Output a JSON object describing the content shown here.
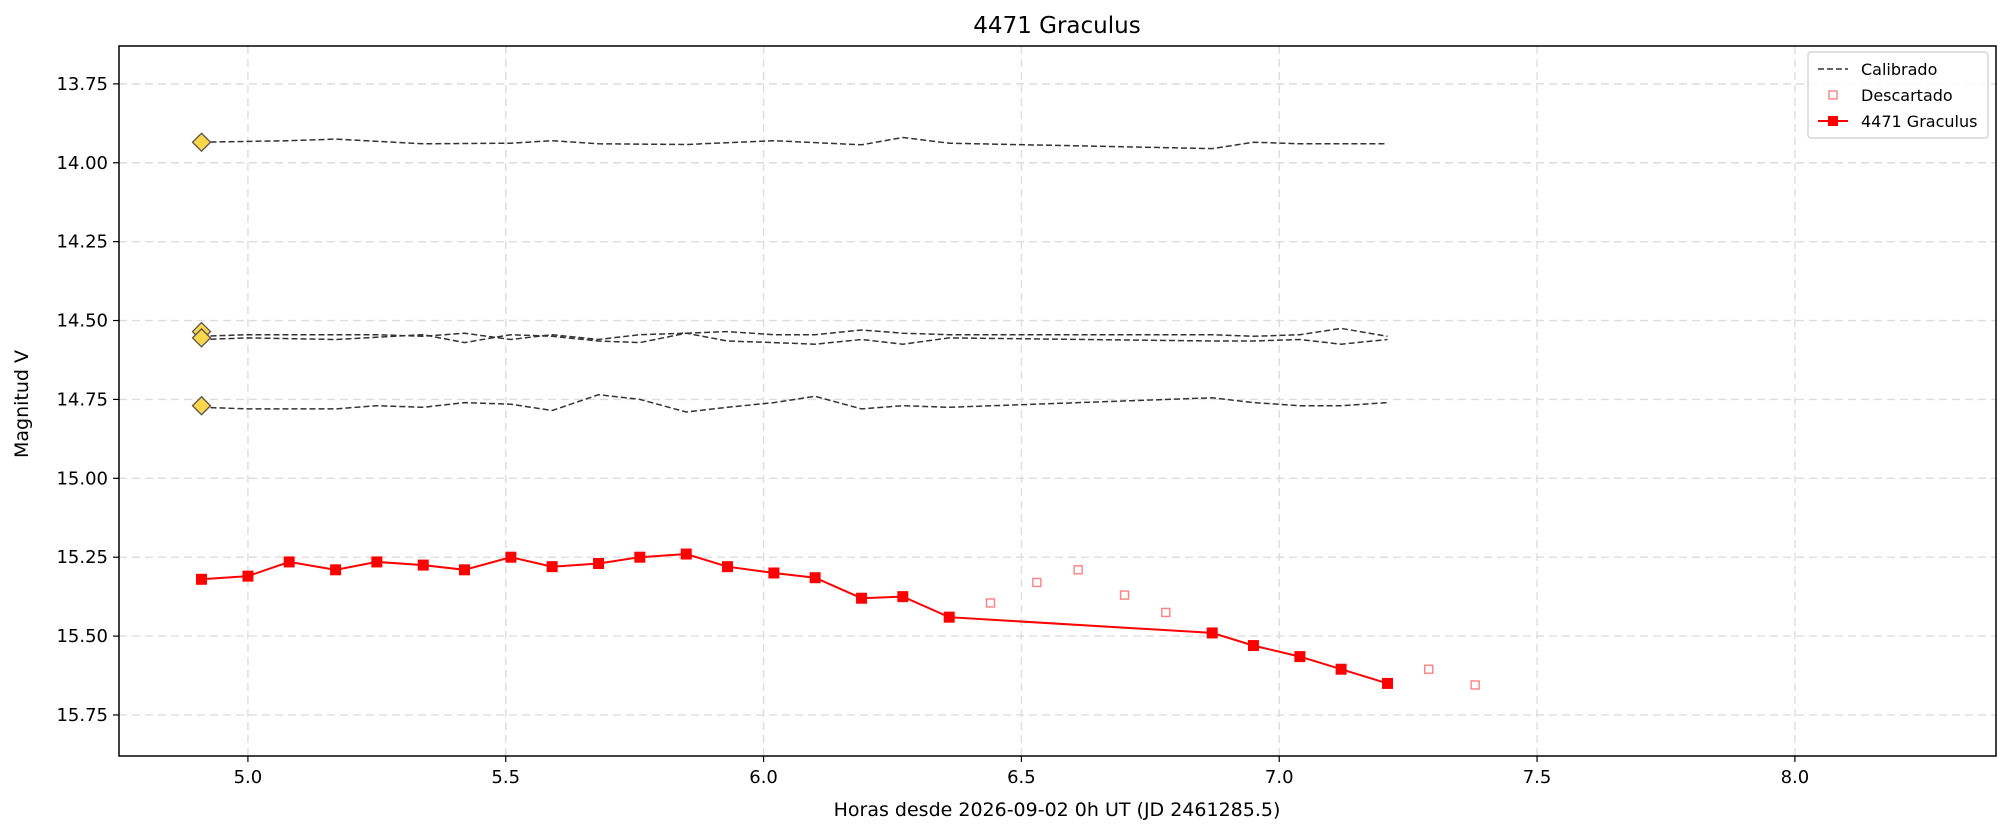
{
  "chart_data": {
    "type": "line",
    "title": "4471 Graculus",
    "xlabel": "Horas desde 2026-09-02 0h UT (JD 2461285.5)",
    "ylabel": "Magnitud V",
    "xlim": [
      4.75,
      8.39
    ],
    "ylim": [
      15.88,
      13.63
    ],
    "y_inverted": true,
    "grid": true,
    "x_ticks": [
      5.0,
      5.5,
      6.0,
      6.5,
      7.0,
      7.5,
      8.0
    ],
    "x_tick_labels": [
      "5.0",
      "5.5",
      "6.0",
      "6.5",
      "7.0",
      "7.5",
      "8.0"
    ],
    "y_ticks": [
      13.75,
      14.0,
      14.25,
      14.5,
      14.75,
      15.0,
      15.25,
      15.5,
      15.75
    ],
    "y_tick_labels": [
      "13.75",
      "14.00",
      "14.25",
      "14.50",
      "14.75",
      "15.00",
      "15.25",
      "15.50",
      "15.75"
    ],
    "legend": {
      "placement": "top-right",
      "entries": [
        {
          "label": "Calibrado",
          "style": "dashed-line",
          "color": "#333333"
        },
        {
          "label": "Descartado",
          "style": "hollow-square",
          "color": "#ff8080"
        },
        {
          "label": "4471 Graculus",
          "style": "line-square",
          "color": "#ff0000"
        }
      ]
    },
    "colors": {
      "target": "#ff0000",
      "discarded": "#ff8080",
      "calibrated": "#333333",
      "comparison_marker": "#ffd54a",
      "comparison_marker_edge": "#555555"
    },
    "comparison_markers": [
      {
        "x": 4.91,
        "y": 13.935
      },
      {
        "x": 4.91,
        "y": 14.535
      },
      {
        "x": 4.91,
        "y": 14.555
      },
      {
        "x": 4.91,
        "y": 14.77
      }
    ],
    "calibrated_series": [
      {
        "x": [
          4.91,
          5.08,
          5.17,
          5.34,
          5.51,
          5.59,
          5.68,
          5.85,
          6.02,
          6.19,
          6.27,
          6.36,
          6.87,
          6.95,
          7.04,
          7.21
        ],
        "y": [
          13.935,
          13.93,
          13.925,
          13.94,
          13.938,
          13.93,
          13.94,
          13.942,
          13.93,
          13.943,
          13.92,
          13.938,
          13.955,
          13.935,
          13.94,
          13.94
        ]
      },
      {
        "x": [
          4.91,
          5.0,
          5.17,
          5.25,
          5.34,
          5.42,
          5.51,
          5.59,
          5.68,
          5.76,
          5.85,
          5.93,
          6.02,
          6.1,
          6.19,
          6.27,
          6.36,
          6.87,
          6.95,
          7.04,
          7.12,
          7.21
        ],
        "y": [
          14.55,
          14.545,
          14.545,
          14.545,
          14.55,
          14.54,
          14.56,
          14.545,
          14.56,
          14.545,
          14.54,
          14.535,
          14.545,
          14.545,
          14.53,
          14.54,
          14.545,
          14.545,
          14.55,
          14.545,
          14.525,
          14.55
        ]
      },
      {
        "x": [
          4.91,
          5.0,
          5.17,
          5.34,
          5.42,
          5.51,
          5.59,
          5.68,
          5.76,
          5.85,
          5.93,
          6.02,
          6.1,
          6.19,
          6.27,
          6.36,
          6.87,
          6.95,
          7.04,
          7.12,
          7.21
        ],
        "y": [
          14.56,
          14.555,
          14.56,
          14.545,
          14.57,
          14.545,
          14.55,
          14.565,
          14.57,
          14.54,
          14.565,
          14.57,
          14.575,
          14.56,
          14.575,
          14.555,
          14.565,
          14.565,
          14.56,
          14.575,
          14.56
        ]
      },
      {
        "x": [
          4.91,
          5.0,
          5.08,
          5.17,
          5.25,
          5.34,
          5.42,
          5.51,
          5.59,
          5.68,
          5.76,
          5.85,
          5.93,
          6.02,
          6.1,
          6.19,
          6.27,
          6.36,
          6.87,
          6.95,
          7.04,
          7.12,
          7.21
        ],
        "y": [
          14.775,
          14.78,
          14.78,
          14.78,
          14.77,
          14.775,
          14.76,
          14.765,
          14.785,
          14.735,
          14.75,
          14.79,
          14.775,
          14.76,
          14.74,
          14.78,
          14.77,
          14.775,
          14.745,
          14.76,
          14.77,
          14.77,
          14.76
        ]
      }
    ],
    "series": [
      {
        "name": "4471 Graculus",
        "x": [
          4.91,
          5.0,
          5.08,
          5.17,
          5.25,
          5.34,
          5.42,
          5.51,
          5.59,
          5.68,
          5.76,
          5.85,
          5.93,
          6.02,
          6.1,
          6.19,
          6.27,
          6.36,
          6.87,
          6.95,
          7.04,
          7.12,
          7.21
        ],
        "y": [
          15.32,
          15.31,
          15.265,
          15.29,
          15.265,
          15.275,
          15.29,
          15.25,
          15.28,
          15.27,
          15.25,
          15.24,
          15.28,
          15.3,
          15.315,
          15.38,
          15.375,
          15.44,
          15.49,
          15.53,
          15.565,
          15.605,
          15.65
        ]
      }
    ],
    "discarded": {
      "name": "Descartado",
      "x": [
        6.44,
        6.53,
        6.61,
        6.7,
        6.78,
        7.29,
        7.38
      ],
      "y": [
        15.395,
        15.33,
        15.29,
        15.37,
        15.425,
        15.605,
        15.655
      ]
    }
  }
}
